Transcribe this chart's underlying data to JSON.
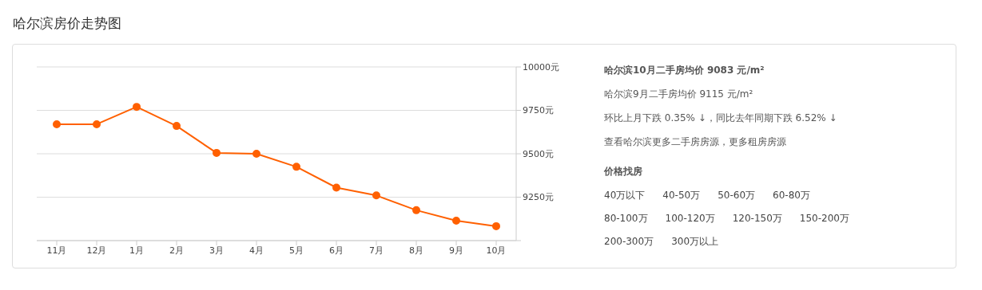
{
  "chart_data": {
    "type": "line",
    "title": "哈尔滨房价走势图",
    "categories": [
      "11月",
      "12月",
      "1月",
      "2月",
      "3月",
      "4月",
      "5月",
      "6月",
      "7月",
      "8月",
      "9月",
      "10月"
    ],
    "values": [
      9670,
      9670,
      9770,
      9660,
      9505,
      9500,
      9425,
      9305,
      9260,
      9175,
      9115,
      9083
    ],
    "color": "#ff6000",
    "ylim": [
      9000,
      10000
    ],
    "yticks": [
      {
        "value": 9000,
        "label": null
      },
      {
        "value": 9250,
        "label": "9250元"
      },
      {
        "value": 9500,
        "label": "9500元"
      },
      {
        "value": 9750,
        "label": "9750元"
      },
      {
        "value": 10000,
        "label": "10000元"
      }
    ],
    "grid": "y",
    "marker": "circle",
    "line_style": "solid",
    "legend": false,
    "annotations": [
      "哈尔滨10月二手房均价 9083 元/m²",
      "哈尔滨9月二手房均价 9115 元/m²",
      "环比上月下跌 0.35% ↓，同比去年同期下跌 6.52% ↓",
      "查看哈尔滨更多二手房房源，更多租房房源",
      "价格找房",
      "40万以下",
      "40-50万",
      "50-60万",
      "60-80万",
      "80-100万",
      "100-120万",
      "120-150万",
      "150-200万",
      "200-300万",
      "300万以上"
    ]
  }
}
